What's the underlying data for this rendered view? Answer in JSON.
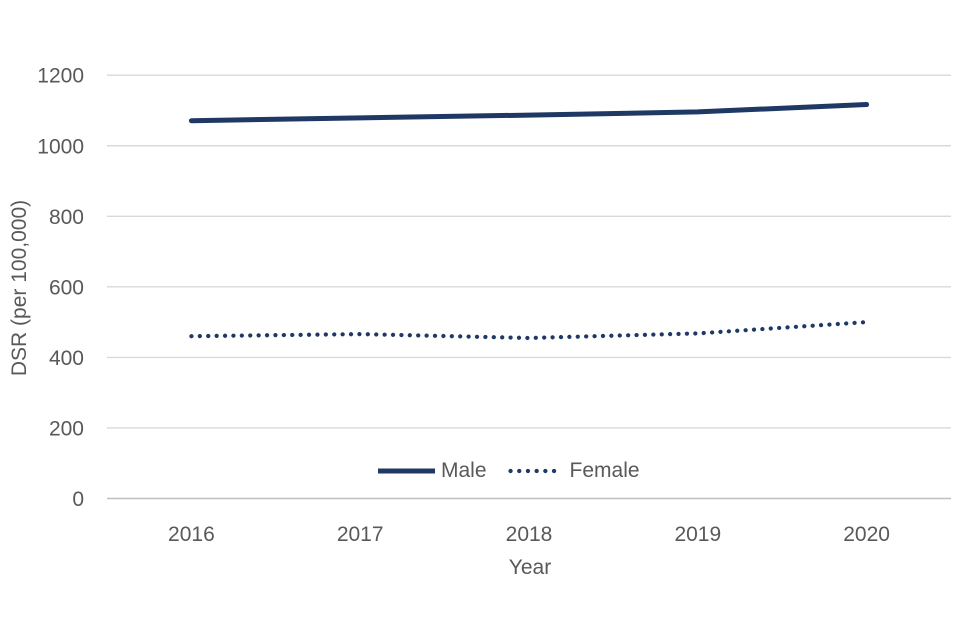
{
  "chart_data": {
    "type": "line",
    "title": "",
    "xlabel": "Year",
    "ylabel": "DSR (per 100,000)",
    "categories": [
      "2016",
      "2017",
      "2018",
      "2019",
      "2020"
    ],
    "series": [
      {
        "name": "Male",
        "style": "solid",
        "values": [
          1071,
          1079,
          1087,
          1096,
          1117
        ]
      },
      {
        "name": "Female",
        "style": "dotted",
        "values": [
          460,
          466,
          455,
          468,
          500
        ]
      }
    ],
    "y_ticks": [
      0,
      200,
      400,
      600,
      800,
      1000,
      1200
    ],
    "ylim": [
      0,
      1300
    ],
    "grid": true,
    "legend_position": "bottom-center-inside"
  },
  "colors": {
    "series": "#1f3864",
    "axis_text": "#595959",
    "gridline": "#d9d9d9",
    "zero_line": "#bfbfbf",
    "background": "#ffffff"
  }
}
